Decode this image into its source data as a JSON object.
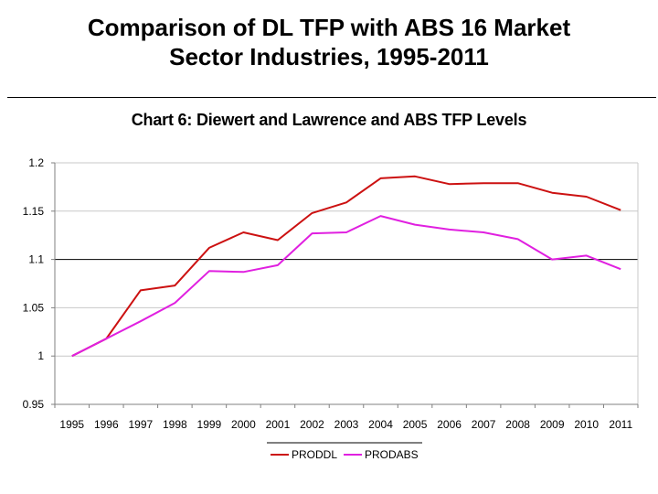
{
  "slide": {
    "title_line1": "Comparison of DL TFP with ABS 16 Market",
    "title_line2": "Sector Industries, 1995-2011"
  },
  "colors": {
    "PRODDL": "#cc1111",
    "PRODABS": "#e020e0",
    "grid": "#c8c8c8",
    "axis": "#808080",
    "highlight_line": "#000000"
  },
  "chart_data": {
    "type": "line",
    "title": "Chart 6: Diewert and Lawrence and ABS TFP Levels",
    "xlabel": "",
    "ylabel": "",
    "ylim": [
      0.95,
      1.2
    ],
    "y_ticks": [
      0.95,
      1,
      1.05,
      1.1,
      1.15,
      1.2
    ],
    "y_tick_labels": [
      "0.95",
      "1",
      "1.05",
      "1.1",
      "1.15",
      "1.2"
    ],
    "highlight_y": 1.1,
    "categories": [
      "1995",
      "1996",
      "1997",
      "1998",
      "1999",
      "2000",
      "2001",
      "2002",
      "2003",
      "2004",
      "2005",
      "2006",
      "2007",
      "2008",
      "2009",
      "2010",
      "2011"
    ],
    "series": [
      {
        "name": "PRODDL",
        "values": [
          1.0,
          1.018,
          1.068,
          1.073,
          1.112,
          1.128,
          1.12,
          1.148,
          1.159,
          1.184,
          1.186,
          1.178,
          1.179,
          1.179,
          1.169,
          1.165,
          1.151
        ]
      },
      {
        "name": "PRODABS",
        "values": [
          1.0,
          1.018,
          1.036,
          1.055,
          1.088,
          1.087,
          1.094,
          1.127,
          1.128,
          1.145,
          1.136,
          1.131,
          1.128,
          1.121,
          1.1,
          1.104,
          1.09
        ]
      }
    ],
    "legend": [
      "PRODDL",
      "PRODABS"
    ],
    "legend_position": "bottom-center"
  }
}
